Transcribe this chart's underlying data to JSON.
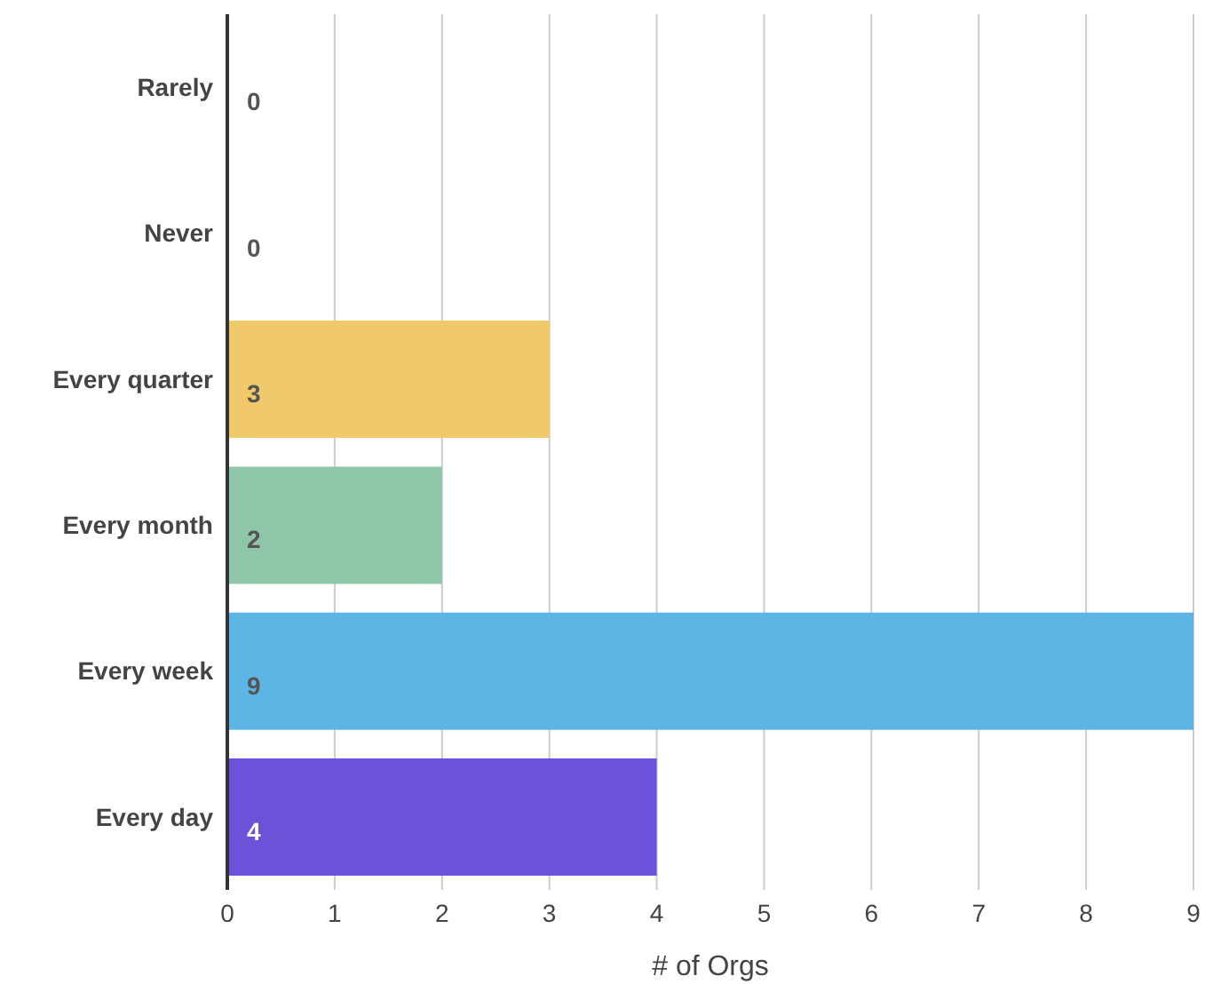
{
  "chart_data": {
    "type": "bar",
    "orientation": "horizontal",
    "xlabel": "# of Orgs",
    "categories": [
      "Rarely",
      "Never",
      "Every quarter",
      "Every month",
      "Every week",
      "Every day"
    ],
    "values": [
      0,
      0,
      3,
      2,
      9,
      4
    ],
    "colors": [
      "#e06666",
      "#a4a4a4",
      "#f0c96b",
      "#8fc5a8",
      "#5db5e3",
      "#6b52d8"
    ],
    "xlim": [
      0,
      9
    ],
    "xticks": [
      0,
      1,
      2,
      3,
      4,
      5,
      6,
      7,
      8,
      9
    ],
    "grid": "x",
    "data_labels": true,
    "legend": false
  }
}
